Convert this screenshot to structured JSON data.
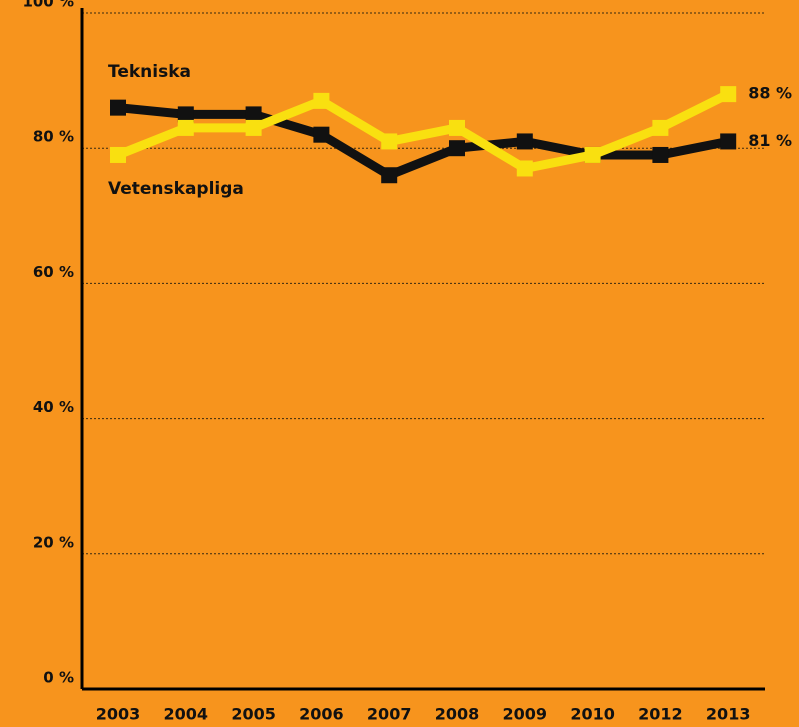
{
  "chart_data": {
    "type": "line",
    "categories": [
      "2003",
      "2004",
      "2005",
      "2006",
      "2007",
      "2008",
      "2009",
      "2010",
      "2012",
      "2013"
    ],
    "series": [
      {
        "name": "Tekniska",
        "color": "#111111",
        "values": [
          86,
          85,
          85,
          82,
          76,
          80,
          81,
          79,
          79,
          81
        ],
        "value_labels": [
          null,
          null,
          null,
          null,
          null,
          null,
          null,
          null,
          null,
          "81 %"
        ]
      },
      {
        "name": "Vetenskapliga",
        "color": "#f9e010",
        "values": [
          79,
          83,
          83,
          87,
          81,
          83,
          77,
          79,
          83,
          88
        ],
        "value_labels": [
          null,
          null,
          null,
          null,
          null,
          null,
          null,
          null,
          null,
          "88 %"
        ]
      }
    ],
    "ylim": [
      0,
      100
    ],
    "yticks": [
      {
        "value": 0,
        "label": "0 %"
      },
      {
        "value": 20,
        "label": "20 %"
      },
      {
        "value": 40,
        "label": "40 %"
      },
      {
        "value": 60,
        "label": "60 %"
      },
      {
        "value": 80,
        "label": "80 %"
      },
      {
        "value": 100,
        "label": "100 %"
      }
    ],
    "grid": true
  }
}
